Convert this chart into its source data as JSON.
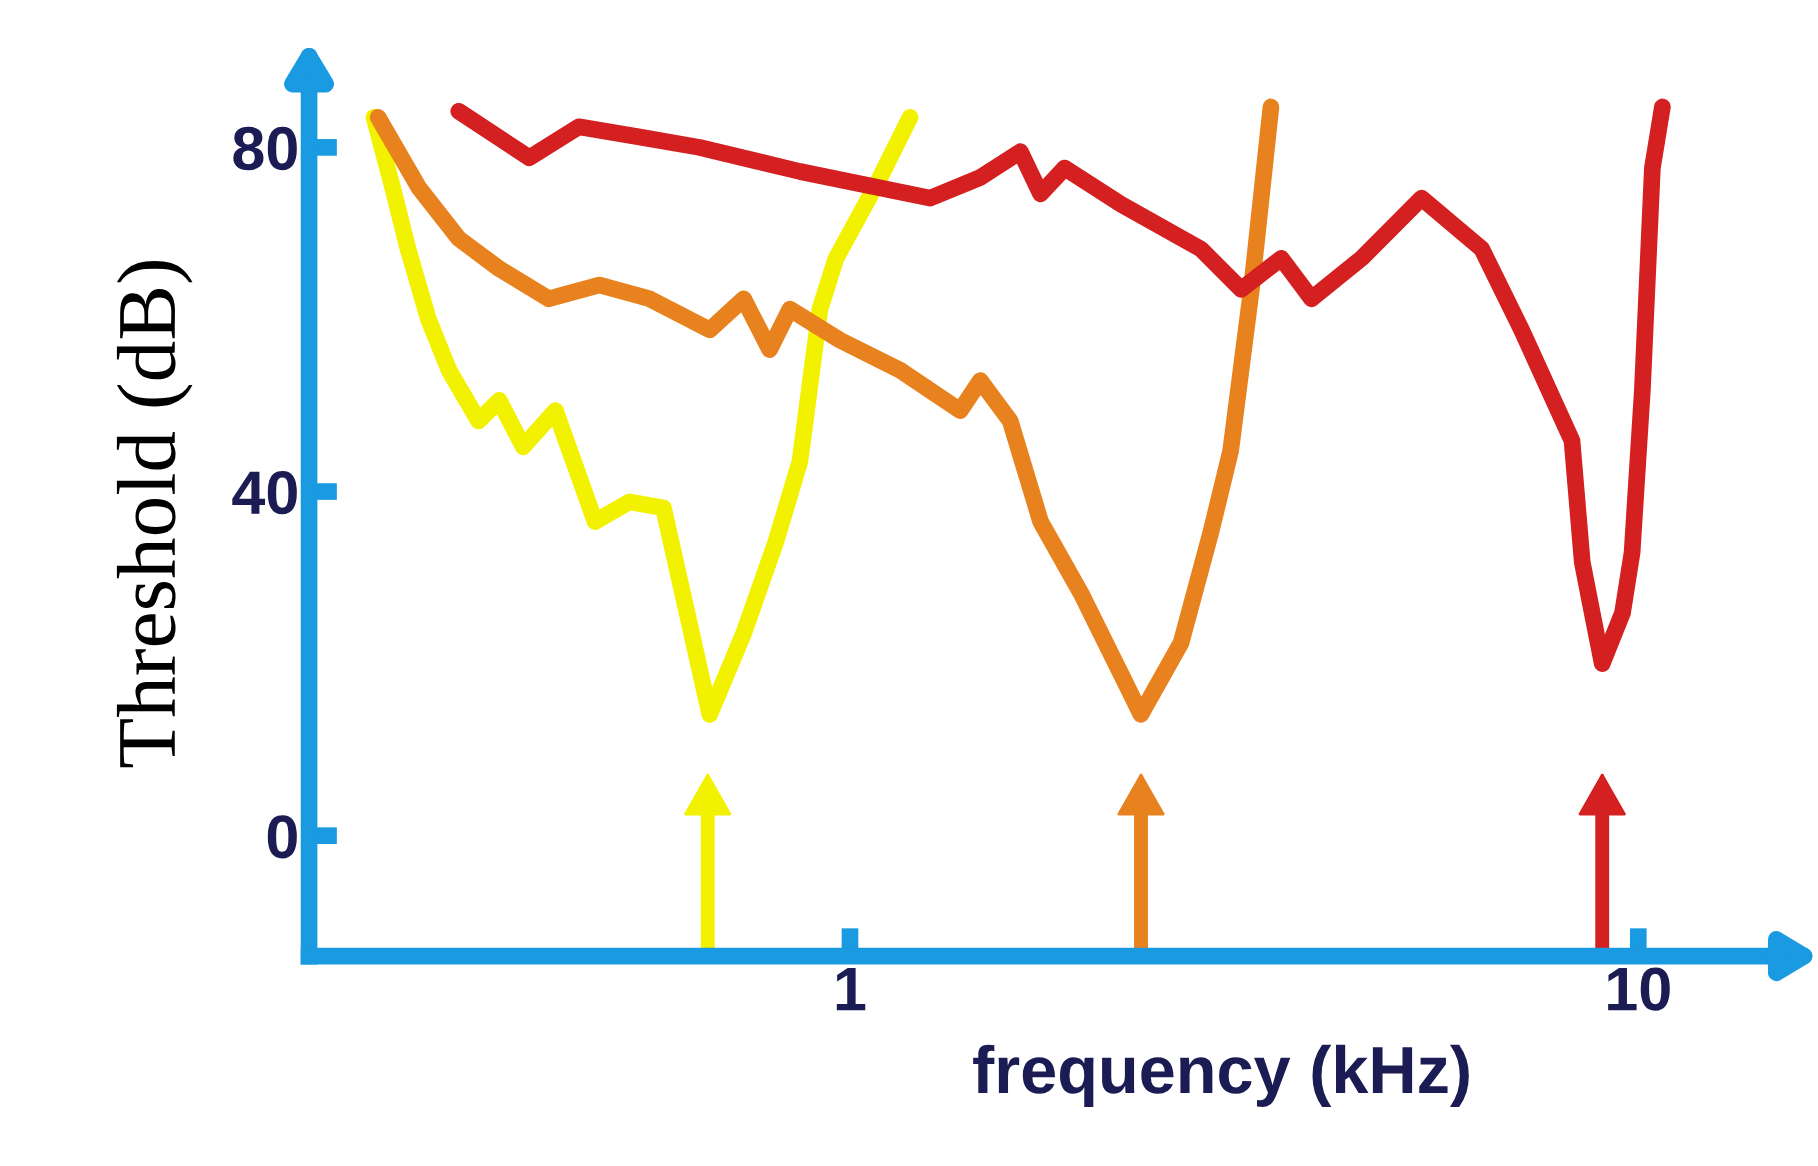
{
  "chart_data": {
    "type": "line",
    "ylabel": "Threshold (dB)",
    "xlabel": "frequency (kHz)",
    "log": "x",
    "xlim": [
      0.206,
      15.2
    ],
    "ylim": [
      -14,
      89
    ],
    "xticks": [
      1,
      10
    ],
    "yticks": [
      0,
      40,
      80
    ],
    "grid": false,
    "marker": "none",
    "line_style": "solid",
    "series": [
      {
        "color": "#f2f200",
        "x": [
          0.249,
          0.263,
          0.275,
          0.292,
          0.31,
          0.338,
          0.359,
          0.385,
          0.423,
          0.475,
          0.525,
          0.58,
          0.664,
          0.733,
          0.805,
          0.864,
          0.916,
          0.96,
          1.092,
          1.192
        ],
        "values": [
          83.5,
          75.3,
          68.2,
          60,
          54.1,
          48.2,
          50.6,
          45.2,
          49.4,
          36.5,
          38.8,
          38.1,
          14.1,
          23.5,
          34.1,
          43.5,
          61.2,
          67.1,
          76.5,
          83.5
        ]
      },
      {
        "color": "#e8821e",
        "x": [
          0.252,
          0.284,
          0.319,
          0.359,
          0.415,
          0.481,
          0.557,
          0.664,
          0.733,
          0.791,
          0.839,
          0.971,
          1.158,
          1.38,
          1.463,
          1.597,
          1.745,
          1.963,
          2.207,
          2.339,
          2.63,
          2.87,
          3.04,
          3.23,
          3.42
        ],
        "values": [
          83.5,
          75.3,
          69.4,
          65.9,
          62.4,
          64,
          62.4,
          58.8,
          62.4,
          56.5,
          61.2,
          57.6,
          54.1,
          49.4,
          52.9,
          48.2,
          36.5,
          28.2,
          18.8,
          14.1,
          22.4,
          35.3,
          44.7,
          63.5,
          84.7
        ]
      },
      {
        "color": "#d42020",
        "x": [
          0.319,
          0.392,
          0.453,
          0.541,
          0.644,
          0.864,
          1.264,
          1.463,
          1.645,
          1.745,
          1.872,
          2.207,
          2.786,
          3.135,
          3.525,
          3.85,
          4.456,
          5.31,
          6.33,
          7.11,
          8.24,
          8.49,
          8.74,
          9.0,
          9.55,
          9.82,
          10.12,
          10.42,
          10.73
        ],
        "values": [
          84.2,
          78.8,
          82.4,
          81.2,
          80,
          77.2,
          74.1,
          76.5,
          79.5,
          74.6,
          77.6,
          73.4,
          68.2,
          63.5,
          67.1,
          62.4,
          67.1,
          74.1,
          68.2,
          58.8,
          45.9,
          31.8,
          25.9,
          20,
          25.9,
          32.9,
          51.8,
          77.6,
          84.7
        ]
      }
    ],
    "ref_lines": [
      {
        "axis": "x",
        "value": 0.66,
        "color": "#f2f200"
      },
      {
        "axis": "x",
        "value": 2.34,
        "color": "#e8821e"
      },
      {
        "axis": "x",
        "value": 9.0,
        "color": "#d42020"
      }
    ]
  }
}
